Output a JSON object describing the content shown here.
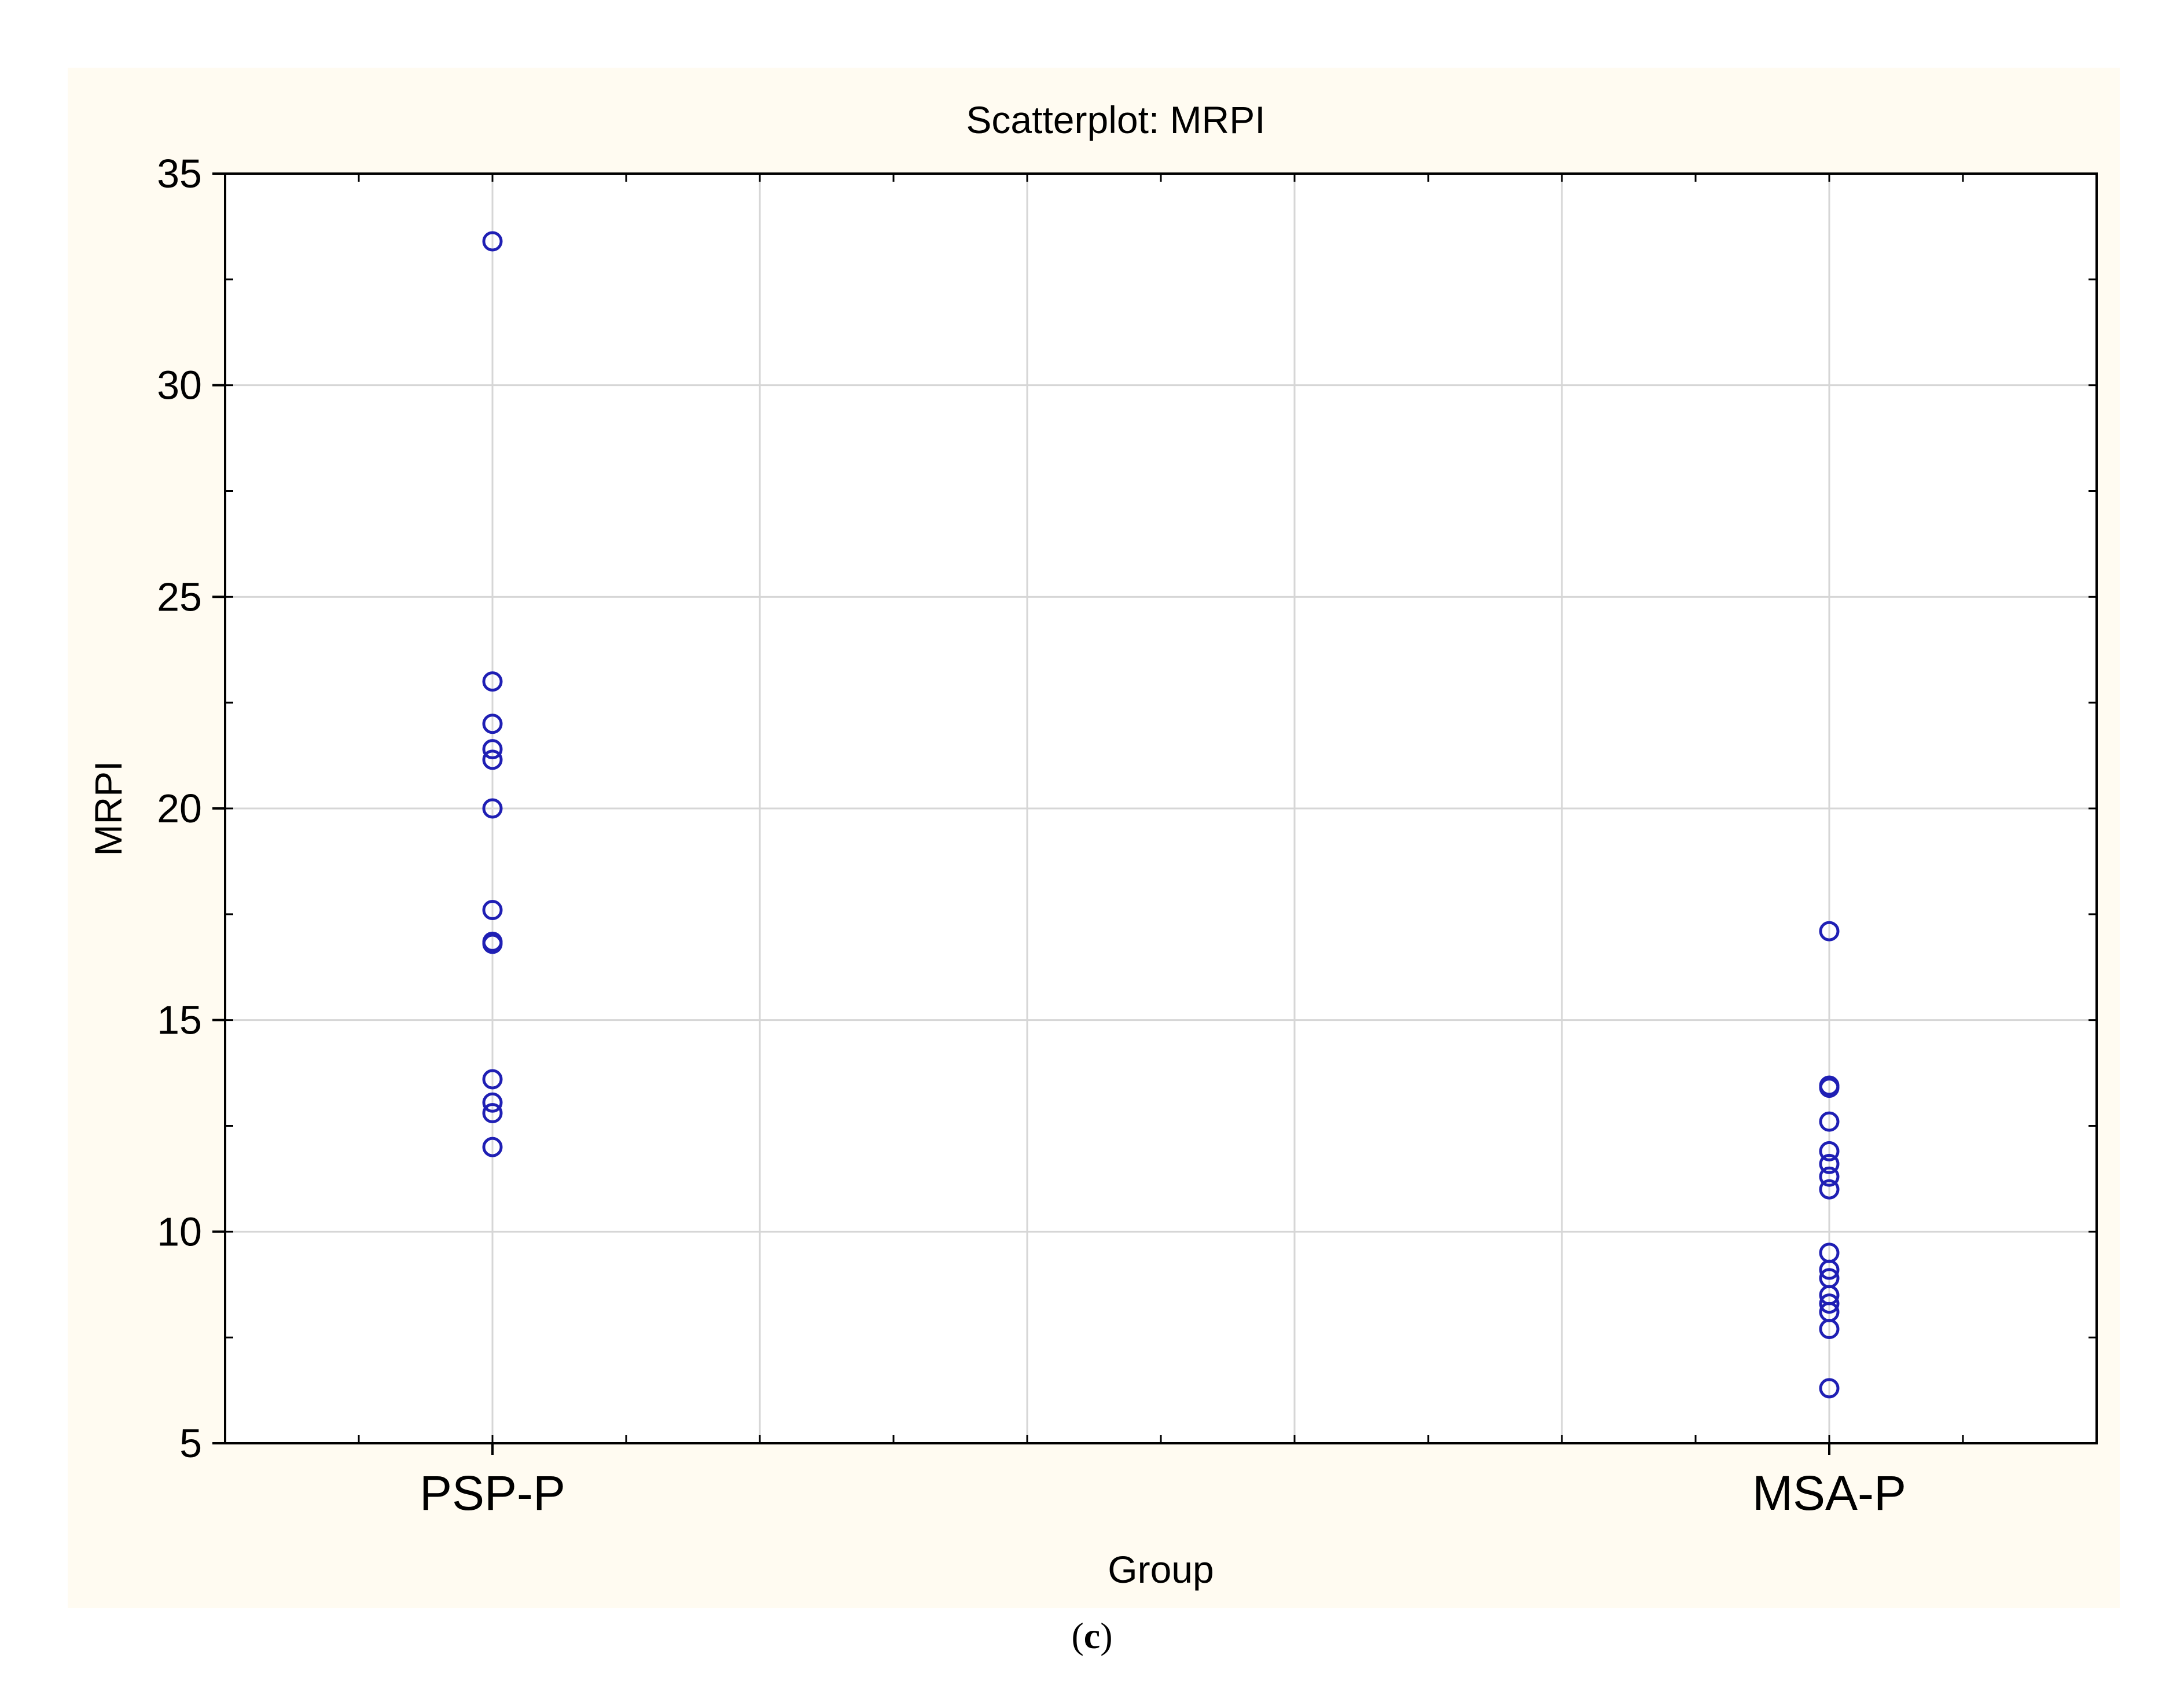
{
  "chart_data": {
    "type": "scatter",
    "title": "Scatterplot: MRPI",
    "xlabel": "Group",
    "ylabel": "MRPI",
    "categories": [
      "PSP-P",
      "MSA-P"
    ],
    "ylim": [
      5,
      35
    ],
    "yticks": [
      5,
      10,
      15,
      20,
      25,
      30,
      35
    ],
    "grid": true,
    "points": [
      {
        "x": "PSP-P",
        "y": 33.4
      },
      {
        "x": "PSP-P",
        "y": 23.0
      },
      {
        "x": "PSP-P",
        "y": 22.0
      },
      {
        "x": "PSP-P",
        "y": 21.4
      },
      {
        "x": "PSP-P",
        "y": 21.15
      },
      {
        "x": "PSP-P",
        "y": 20.0
      },
      {
        "x": "PSP-P",
        "y": 17.6
      },
      {
        "x": "PSP-P",
        "y": 16.85
      },
      {
        "x": "PSP-P",
        "y": 16.8
      },
      {
        "x": "PSP-P",
        "y": 13.6
      },
      {
        "x": "PSP-P",
        "y": 13.05
      },
      {
        "x": "PSP-P",
        "y": 12.8
      },
      {
        "x": "PSP-P",
        "y": 12.0
      },
      {
        "x": "MSA-P",
        "y": 17.1
      },
      {
        "x": "MSA-P",
        "y": 13.45
      },
      {
        "x": "MSA-P",
        "y": 13.4
      },
      {
        "x": "MSA-P",
        "y": 12.6
      },
      {
        "x": "MSA-P",
        "y": 11.9
      },
      {
        "x": "MSA-P",
        "y": 11.6
      },
      {
        "x": "MSA-P",
        "y": 11.3
      },
      {
        "x": "MSA-P",
        "y": 11.0
      },
      {
        "x": "MSA-P",
        "y": 9.5
      },
      {
        "x": "MSA-P",
        "y": 9.1
      },
      {
        "x": "MSA-P",
        "y": 8.9
      },
      {
        "x": "MSA-P",
        "y": 8.5
      },
      {
        "x": "MSA-P",
        "y": 8.3
      },
      {
        "x": "MSA-P",
        "y": 8.1
      },
      {
        "x": "MSA-P",
        "y": 7.7
      },
      {
        "x": "MSA-P",
        "y": 6.3
      }
    ],
    "colors": {
      "marker": "#1f1fb4",
      "panel_background": "#fffbf1",
      "plot_background": "#ffffff",
      "grid": "#d6d6d6"
    }
  },
  "figure": {
    "panel_label_open": "(",
    "panel_label_letter": "c",
    "panel_label_close": ")"
  }
}
